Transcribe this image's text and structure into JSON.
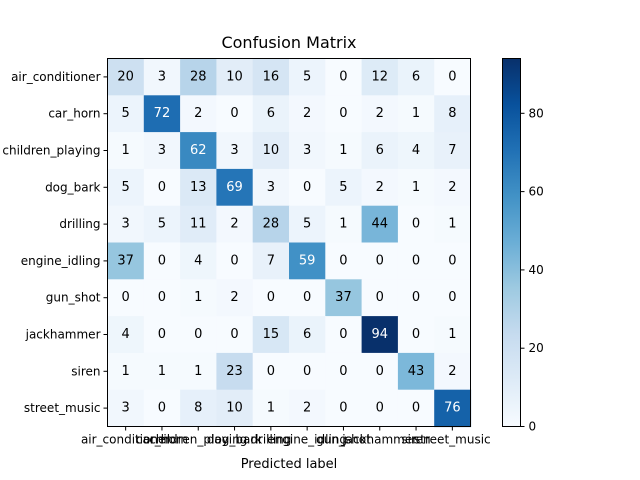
{
  "chart_data": {
    "type": "heatmap",
    "title": "Confusion Matrix",
    "xlabel": "Predicted label",
    "ylabel": "",
    "row_labels": [
      "air_conditioner",
      "car_horn",
      "children_playing",
      "dog_bark",
      "drilling",
      "engine_idling",
      "gun_shot",
      "jackhammer",
      "siren",
      "street_music"
    ],
    "col_labels": [
      "air_conditioner",
      "car_horn",
      "children_playing",
      "dog_bark",
      "drilling",
      "engine_idling",
      "gun_shot",
      "jackhammer",
      "siren",
      "street_music"
    ],
    "values": [
      [
        20,
        3,
        28,
        10,
        16,
        5,
        0,
        12,
        6,
        0
      ],
      [
        5,
        72,
        2,
        0,
        6,
        2,
        0,
        2,
        1,
        8
      ],
      [
        1,
        3,
        62,
        3,
        10,
        3,
        1,
        6,
        4,
        7
      ],
      [
        5,
        0,
        13,
        69,
        3,
        0,
        5,
        2,
        1,
        2
      ],
      [
        3,
        5,
        11,
        2,
        28,
        5,
        1,
        44,
        0,
        1
      ],
      [
        37,
        0,
        4,
        0,
        7,
        59,
        0,
        0,
        0,
        0
      ],
      [
        0,
        0,
        1,
        2,
        0,
        0,
        37,
        0,
        0,
        0
      ],
      [
        4,
        0,
        0,
        0,
        15,
        6,
        0,
        94,
        0,
        1
      ],
      [
        1,
        1,
        1,
        23,
        0,
        0,
        0,
        0,
        43,
        2
      ],
      [
        3,
        0,
        8,
        10,
        1,
        2,
        0,
        0,
        0,
        76
      ]
    ],
    "colormap": "Blues",
    "vmin": 0,
    "vmax": 94,
    "colorbar_ticks": [
      0,
      20,
      40,
      60,
      80
    ],
    "grid": false
  }
}
